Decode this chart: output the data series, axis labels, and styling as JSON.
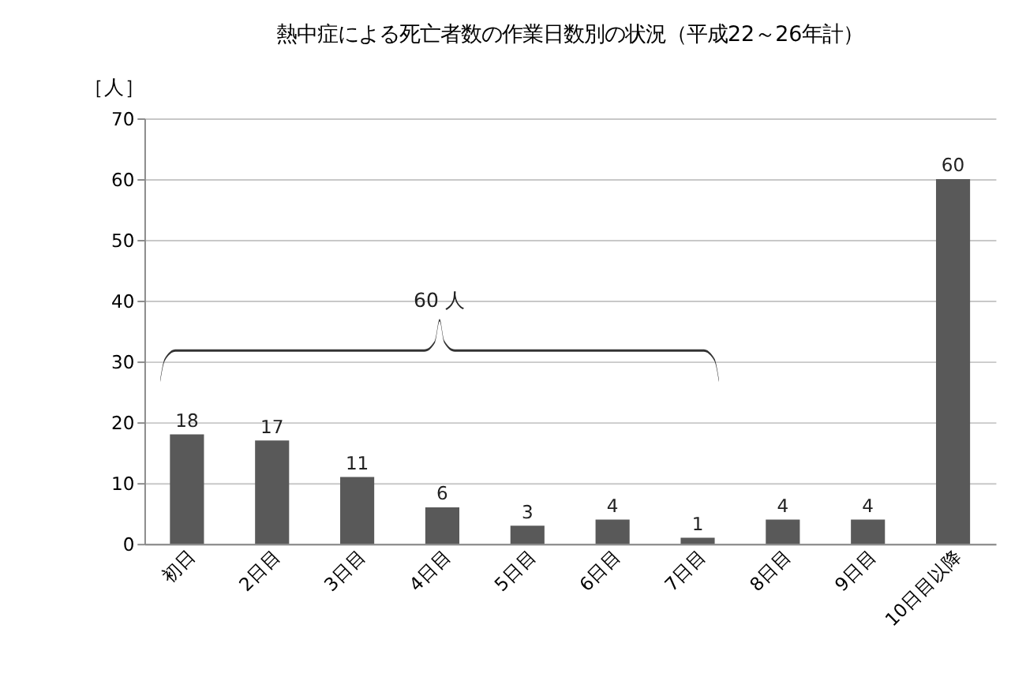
{
  "chart_data": {
    "type": "bar",
    "title": "熱中症による死亡者数の作業日数別の状況（平成22～26年計）",
    "ylabel": "［人］",
    "categories": [
      "初日",
      "2日目",
      "3日目",
      "4日目",
      "5日目",
      "6日目",
      "7日目",
      "8日目",
      "9日目",
      "10日目以降"
    ],
    "values": [
      18,
      17,
      11,
      6,
      3,
      4,
      1,
      4,
      4,
      60
    ],
    "color": "#595959",
    "ylim": [
      0,
      70
    ],
    "yticks": [
      0,
      10,
      20,
      30,
      40,
      50,
      60,
      70
    ],
    "grid": "y",
    "data_labels": true,
    "annotations": [
      "60 人"
    ]
  }
}
